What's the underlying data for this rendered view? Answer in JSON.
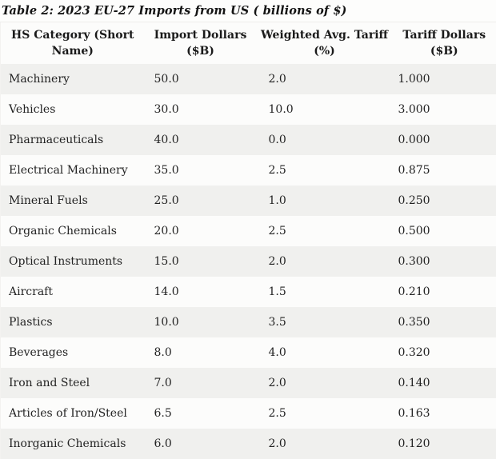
{
  "title": "Table 2: 2023 EU-27 Imports from US ( billions of $)",
  "colors": {
    "stripe_gray": "#f0f0ee",
    "row_white": "#fcfcfb",
    "text": "#232323",
    "title_text": "#141414"
  },
  "table": {
    "columns": [
      {
        "line1": "HS Category (Short",
        "line2": "Name)"
      },
      {
        "line1": "Import Dollars",
        "line2": "($B)"
      },
      {
        "line1": "Weighted Avg. Tariff",
        "line2": "(%)"
      },
      {
        "line1": "Tariff Dollars",
        "line2": "($B)"
      }
    ],
    "rows": [
      {
        "category": "Machinery",
        "import_b": "50.0",
        "tariff_pct": "2.0",
        "tariff_b": "1.000"
      },
      {
        "category": "Vehicles",
        "import_b": "30.0",
        "tariff_pct": "10.0",
        "tariff_b": "3.000"
      },
      {
        "category": "Pharmaceuticals",
        "import_b": "40.0",
        "tariff_pct": "0.0",
        "tariff_b": "0.000"
      },
      {
        "category": "Electrical Machinery",
        "import_b": "35.0",
        "tariff_pct": "2.5",
        "tariff_b": "0.875"
      },
      {
        "category": "Mineral Fuels",
        "import_b": "25.0",
        "tariff_pct": "1.0",
        "tariff_b": "0.250"
      },
      {
        "category": "Organic Chemicals",
        "import_b": "20.0",
        "tariff_pct": "2.5",
        "tariff_b": "0.500"
      },
      {
        "category": "Optical Instruments",
        "import_b": "15.0",
        "tariff_pct": "2.0",
        "tariff_b": "0.300"
      },
      {
        "category": "Aircraft",
        "import_b": "14.0",
        "tariff_pct": "1.5",
        "tariff_b": "0.210"
      },
      {
        "category": "Plastics",
        "import_b": "10.0",
        "tariff_pct": "3.5",
        "tariff_b": "0.350"
      },
      {
        "category": "Beverages",
        "import_b": "8.0",
        "tariff_pct": "4.0",
        "tariff_b": "0.320"
      },
      {
        "category": "Iron and Steel",
        "import_b": "7.0",
        "tariff_pct": "2.0",
        "tariff_b": "0.140"
      },
      {
        "category": "Articles of Iron/Steel",
        "import_b": "6.5",
        "tariff_pct": "2.5",
        "tariff_b": "0.163"
      },
      {
        "category": "Inorganic Chemicals",
        "import_b": "6.0",
        "tariff_pct": "2.0",
        "tariff_b": "0.120"
      }
    ]
  },
  "chart_data": {
    "type": "table",
    "title": "Table 2: 2023 EU-27 Imports from US ( billions of $)",
    "columns": [
      "HS Category (Short Name)",
      "Import Dollars ($B)",
      "Weighted Avg. Tariff (%)",
      "Tariff Dollars ($B)"
    ],
    "categories": [
      "Machinery",
      "Vehicles",
      "Pharmaceuticals",
      "Electrical Machinery",
      "Mineral Fuels",
      "Organic Chemicals",
      "Optical Instruments",
      "Aircraft",
      "Plastics",
      "Beverages",
      "Iron and Steel",
      "Articles of Iron/Steel",
      "Inorganic Chemicals"
    ],
    "series": [
      {
        "name": "Import Dollars ($B)",
        "values": [
          50.0,
          30.0,
          40.0,
          35.0,
          25.0,
          20.0,
          15.0,
          14.0,
          10.0,
          8.0,
          7.0,
          6.5,
          6.0
        ]
      },
      {
        "name": "Weighted Avg. Tariff (%)",
        "values": [
          2.0,
          10.0,
          0.0,
          2.5,
          1.0,
          2.5,
          2.0,
          1.5,
          3.5,
          4.0,
          2.0,
          2.5,
          2.0
        ]
      },
      {
        "name": "Tariff Dollars ($B)",
        "values": [
          1.0,
          3.0,
          0.0,
          0.875,
          0.25,
          0.5,
          0.3,
          0.21,
          0.35,
          0.32,
          0.14,
          0.163,
          0.12
        ]
      }
    ]
  }
}
